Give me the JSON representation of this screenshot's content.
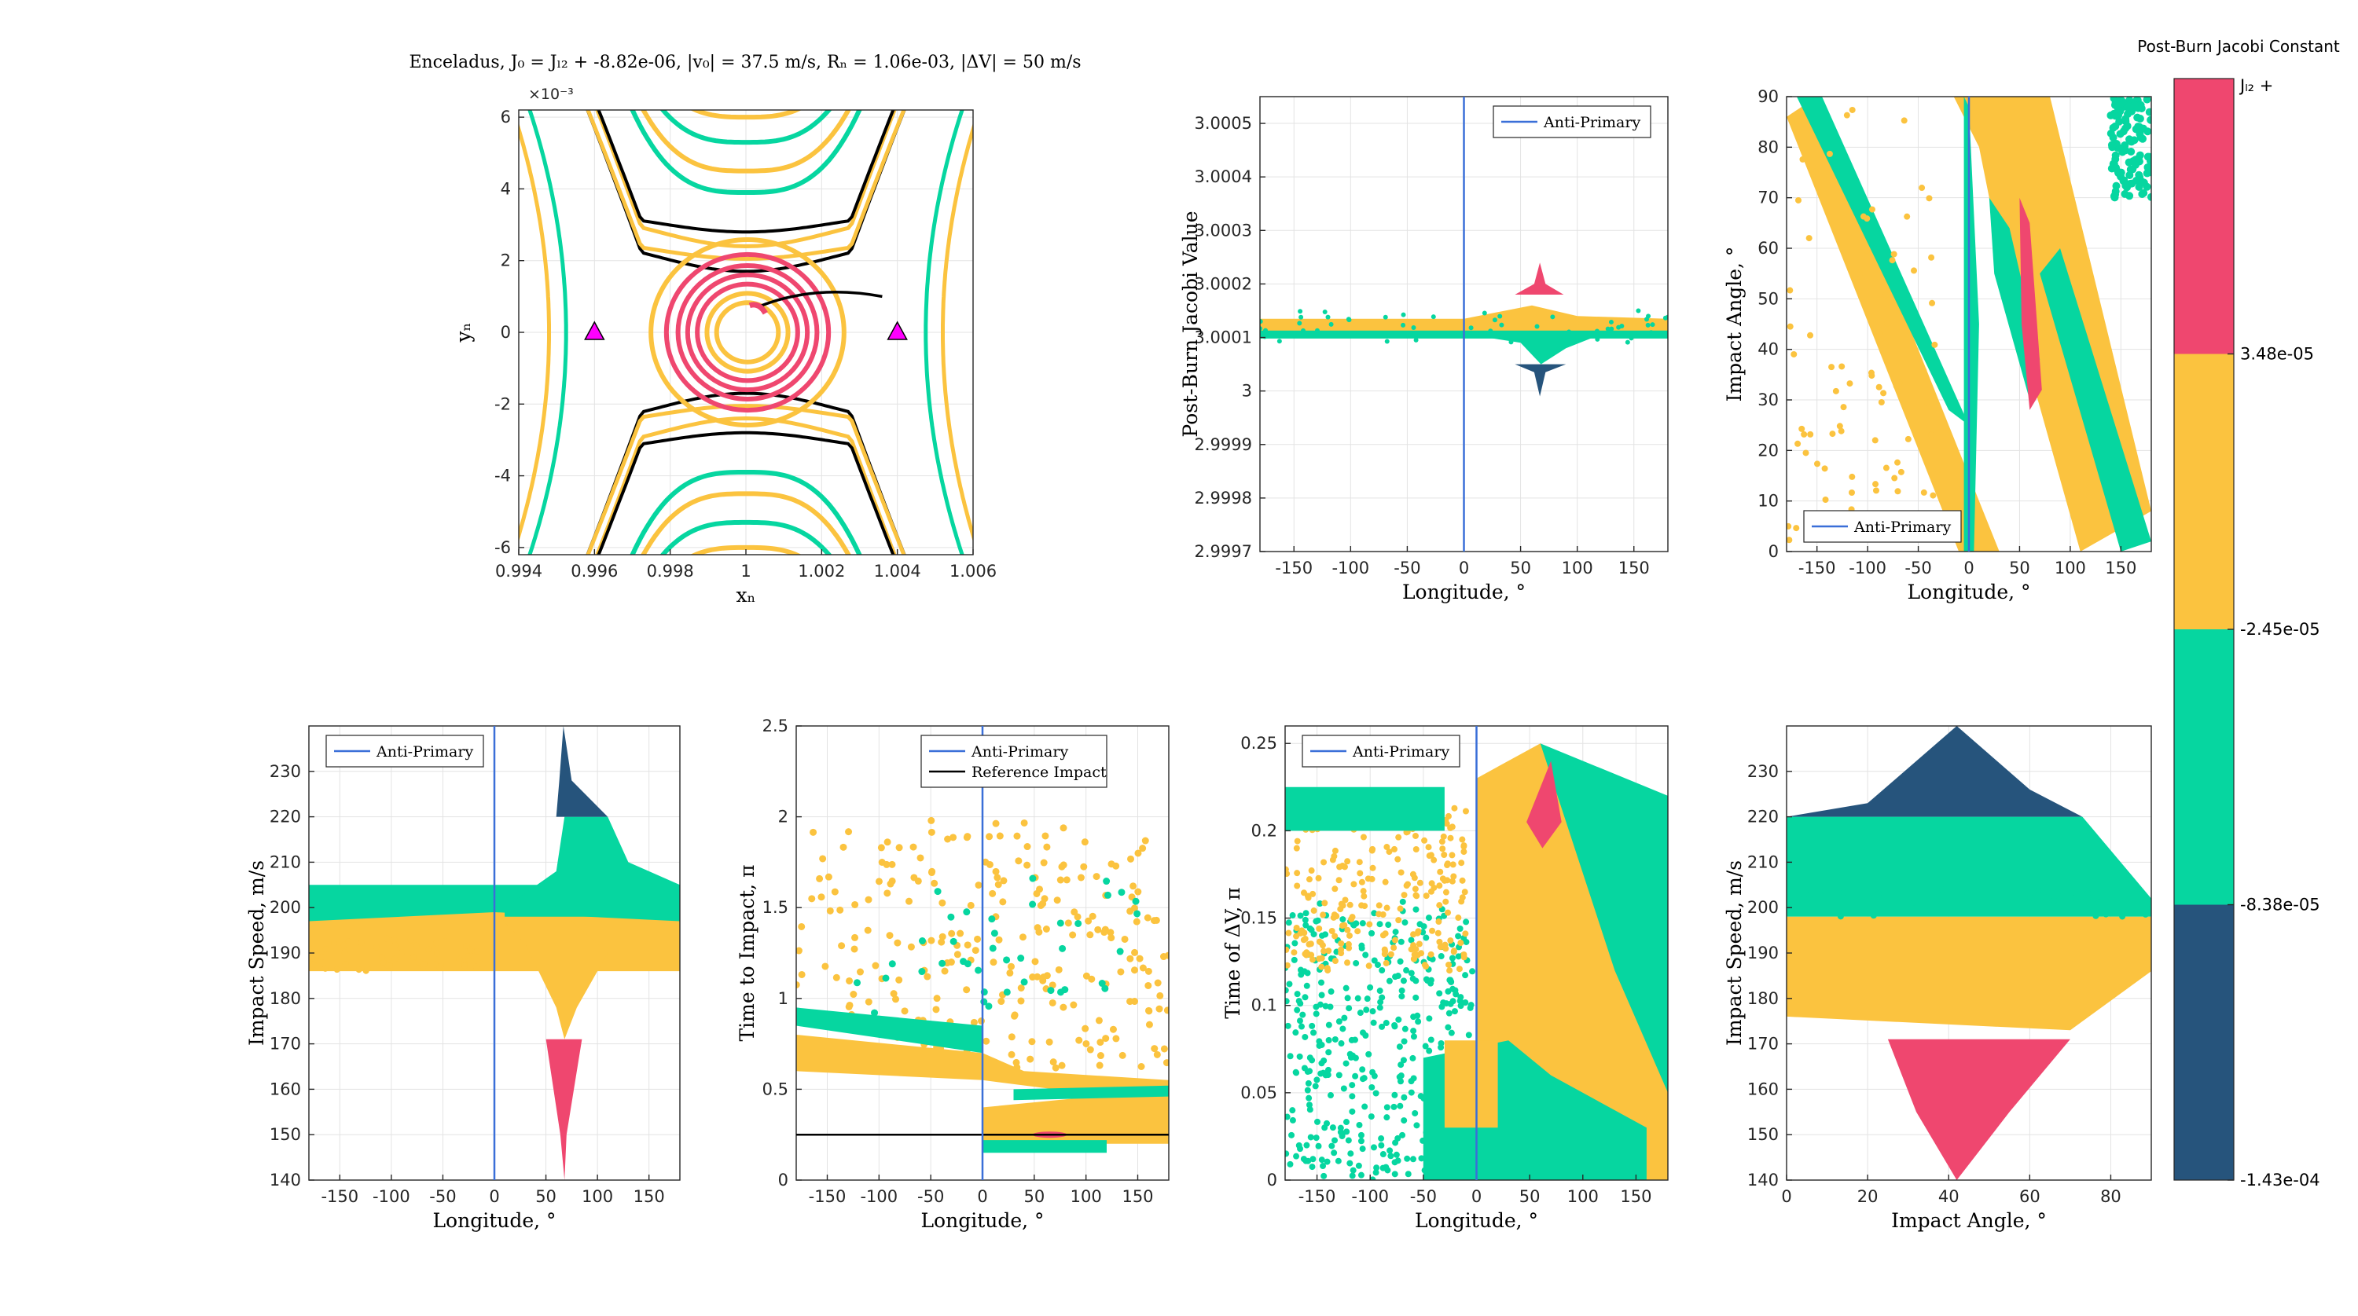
{
  "figure_title": "Enceladus,      J₀ = Jₗ₂ + -8.82e-06,      |v₀| = 37.5 m/s,      Rₙ = 1.06e-03,      |ΔV| = 50 m/s",
  "colors": {
    "pink": "#ef476f",
    "yellow": "#fbc33f",
    "teal": "#06d6a0",
    "navy": "#26547c",
    "blue": "#3a6fd8",
    "magenta": "#ff00ff",
    "black": "#000000"
  },
  "colorbar": {
    "title": "Post-Burn Jacobi Constant",
    "top_label": "Jₗ₂ +",
    "ticks": [
      "3.48e-05",
      "-2.45e-05",
      "-8.38e-05",
      "-1.43e-04"
    ],
    "bands": [
      "pink",
      "yellow",
      "teal",
      "navy"
    ]
  },
  "chart_data": [
    {
      "id": "trajectory",
      "type": "line",
      "xlabel": "xₙ",
      "ylabel": "yₙ",
      "xlim": [
        0.994,
        1.006
      ],
      "ylim": [
        -6.2,
        6.2
      ],
      "y_multiplier": "×10⁻³",
      "xticks": [
        "0.994",
        "0.996",
        "0.998",
        "1",
        "1.002",
        "1.004",
        "1.006"
      ],
      "yticks": [
        "-6",
        "-4",
        "-2",
        "0",
        "2",
        "4",
        "6"
      ],
      "markers": [
        {
          "x": 0.996,
          "y": 0
        },
        {
          "x": 1.004,
          "y": 0
        }
      ]
    },
    {
      "id": "jacobi-vs-longitude",
      "type": "scatter",
      "xlabel": "Longitude, °",
      "ylabel": "Post-Burn Jacobi Value",
      "xlim": [
        -180,
        180
      ],
      "ylim": [
        2.9997,
        3.00055
      ],
      "xticks": [
        "-150",
        "-100",
        "-50",
        "0",
        "50",
        "100",
        "150"
      ],
      "yticks": [
        "2.9997",
        "2.9998",
        "2.9999",
        "3",
        "3.0001",
        "3.0002",
        "3.0003",
        "3.0004",
        "3.0005"
      ],
      "legend": [
        "Anti-Primary"
      ],
      "legend_position": "top-right"
    },
    {
      "id": "angle-vs-longitude",
      "type": "scatter",
      "xlabel": "Longitude, °",
      "ylabel": "Impact Angle, °",
      "xlim": [
        -180,
        180
      ],
      "ylim": [
        0,
        90
      ],
      "xticks": [
        "-150",
        "-100",
        "-50",
        "0",
        "50",
        "100",
        "150"
      ],
      "yticks": [
        "0",
        "10",
        "20",
        "30",
        "40",
        "50",
        "60",
        "70",
        "80",
        "90"
      ],
      "legend": [
        "Anti-Primary"
      ],
      "legend_position": "bottom-left"
    },
    {
      "id": "speed-vs-longitude",
      "type": "scatter",
      "xlabel": "Longitude, °",
      "ylabel": "Impact Speed, m/s",
      "xlim": [
        -180,
        180
      ],
      "ylim": [
        140,
        240
      ],
      "xticks": [
        "-150",
        "-100",
        "-50",
        "0",
        "50",
        "100",
        "150"
      ],
      "yticks": [
        "140",
        "150",
        "160",
        "170",
        "180",
        "190",
        "200",
        "210",
        "220",
        "230"
      ],
      "legend": [
        "Anti-Primary"
      ],
      "legend_position": "top-left"
    },
    {
      "id": "time-to-impact",
      "type": "scatter",
      "xlabel": "Longitude, °",
      "ylabel": "Time to Impact, π",
      "xlim": [
        -180,
        180
      ],
      "ylim": [
        0,
        2.5
      ],
      "xticks": [
        "-150",
        "-100",
        "-50",
        "0",
        "50",
        "100",
        "150"
      ],
      "yticks": [
        "0",
        "0.5",
        "1",
        "1.5",
        "2",
        "2.5"
      ],
      "legend": [
        "Anti-Primary",
        "Reference Impact"
      ],
      "reference_impact": 0.25,
      "legend_position": "top-center"
    },
    {
      "id": "time-of-dv",
      "type": "scatter",
      "xlabel": "Longitude, °",
      "ylabel": "Time of ΔV, π",
      "xlim": [
        -180,
        180
      ],
      "ylim": [
        0,
        0.26
      ],
      "xticks": [
        "-150",
        "-100",
        "-50",
        "0",
        "50",
        "100",
        "150"
      ],
      "yticks": [
        "0",
        "0.05",
        "0.1",
        "0.15",
        "0.2",
        "0.25"
      ],
      "legend": [
        "Anti-Primary"
      ],
      "legend_position": "top-left"
    },
    {
      "id": "speed-vs-angle",
      "type": "scatter",
      "xlabel": "Impact Angle, °",
      "ylabel": "Impact Speed, m/s",
      "xlim": [
        0,
        90
      ],
      "ylim": [
        140,
        240
      ],
      "xticks": [
        "0",
        "20",
        "40",
        "60",
        "80"
      ],
      "yticks": [
        "140",
        "150",
        "160",
        "170",
        "180",
        "190",
        "200",
        "210",
        "220",
        "230"
      ]
    }
  ]
}
